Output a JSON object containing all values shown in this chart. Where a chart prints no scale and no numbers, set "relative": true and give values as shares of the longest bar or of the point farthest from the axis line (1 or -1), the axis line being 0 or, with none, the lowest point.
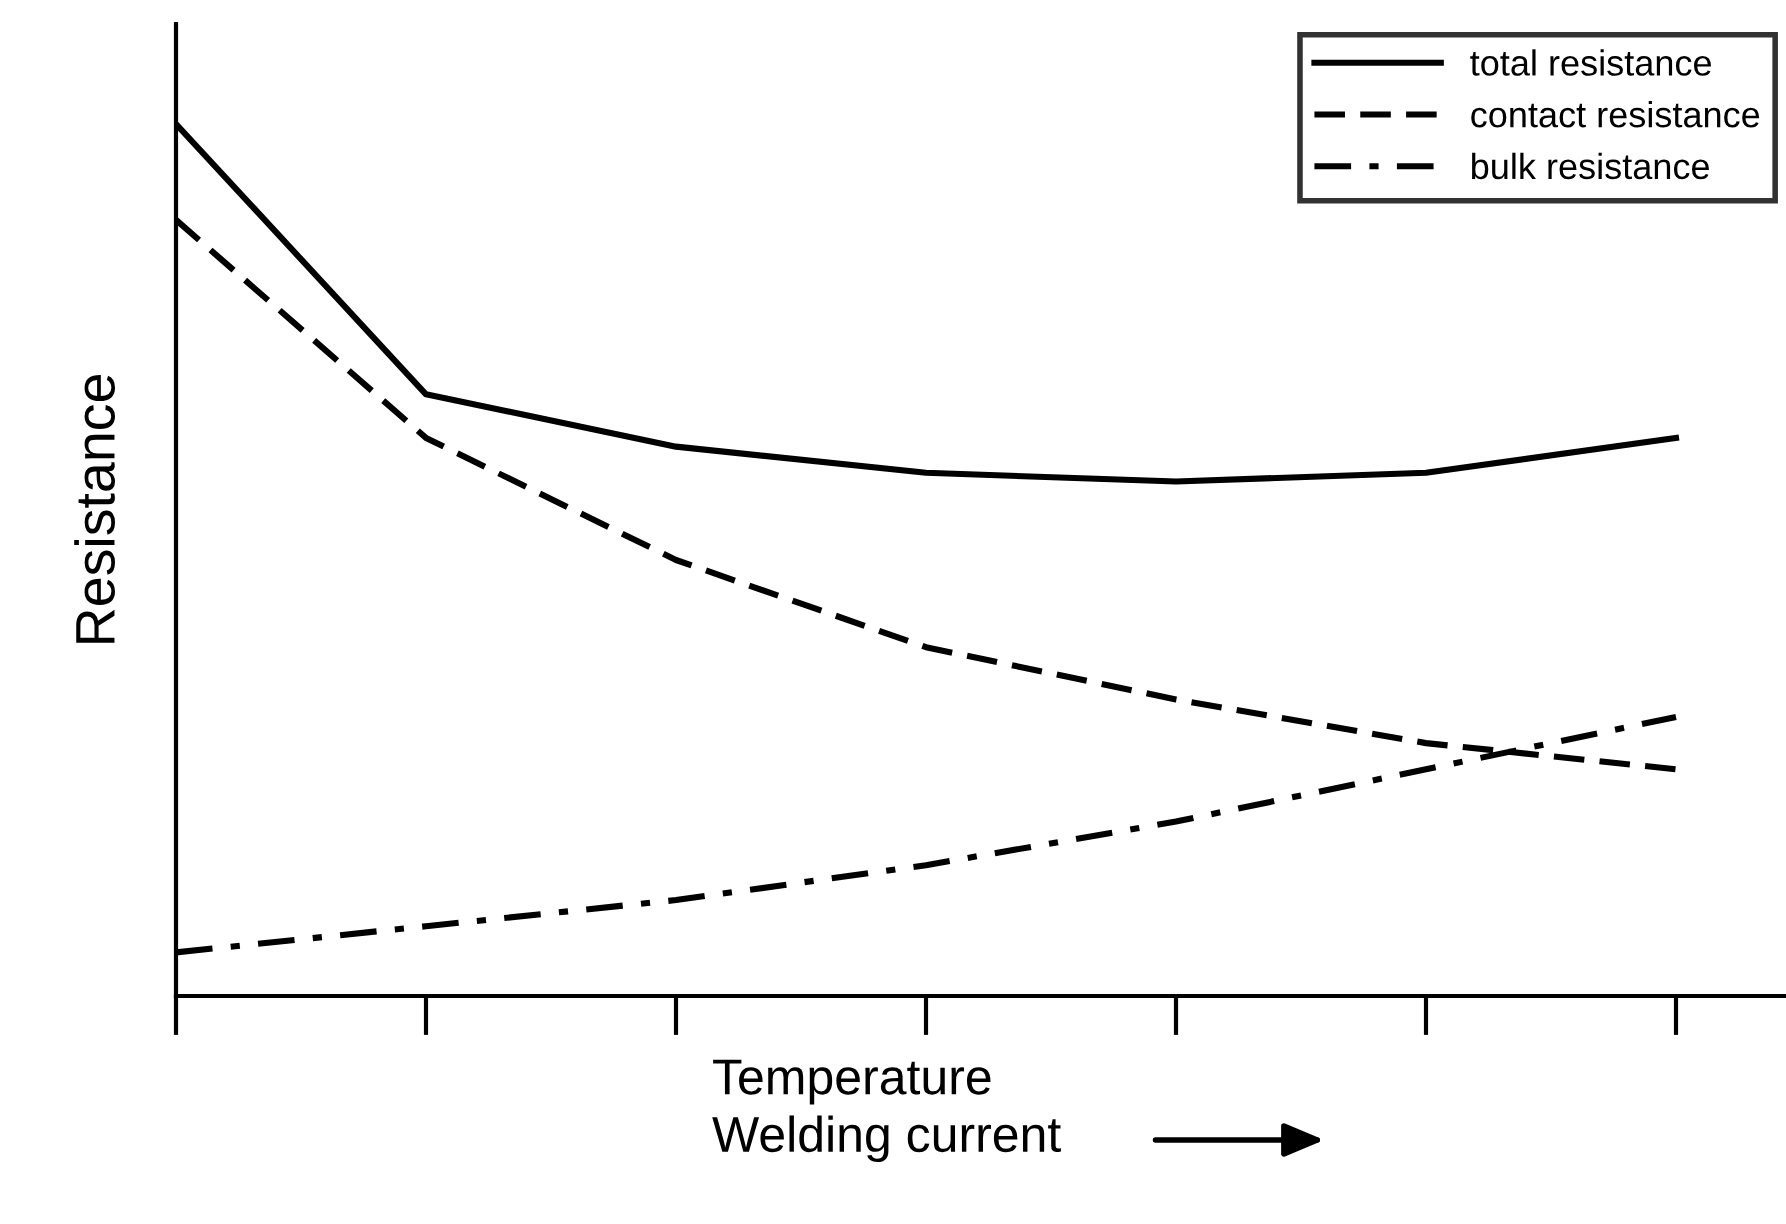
{
  "chart_data": {
    "type": "line",
    "relative": true,
    "xlabel": "Temperature\nWelding current",
    "ylabel": "Resistance",
    "categories": [
      null,
      null,
      null,
      null,
      null,
      null,
      null
    ],
    "series": [
      {
        "name": "total resistance",
        "color": "#000000",
        "line_style": "solid",
        "values": [
          1,
          0.69,
          0.63,
          0.6,
          0.59,
          0.6,
          0.64
        ]
      },
      {
        "name": "contact resistance",
        "color": "#000000",
        "line_style": "dashed",
        "values": [
          0.89,
          0.64,
          0.5,
          0.4,
          0.34,
          0.29,
          0.26
        ]
      },
      {
        "name": "bulk resistance",
        "color": "#000000",
        "line_style": "dashdot",
        "values": [
          0.05,
          0.08,
          0.11,
          0.15,
          0.2,
          0.26,
          0.32
        ]
      }
    ],
    "legend": "top right",
    "grid": false,
    "marker": "none"
  }
}
